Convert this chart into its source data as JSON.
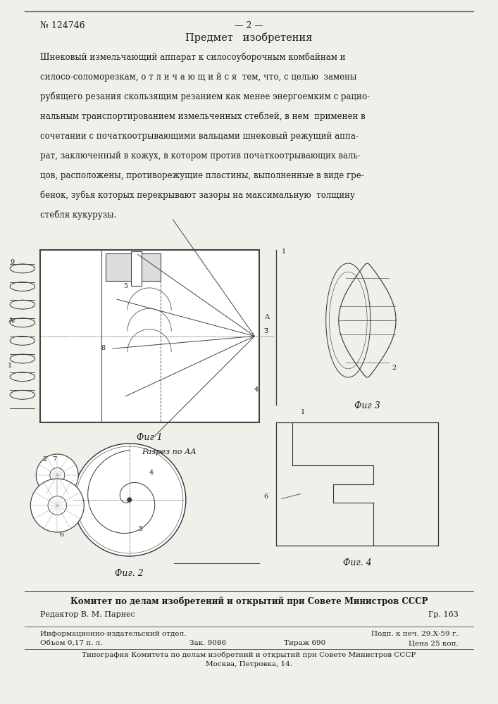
{
  "bg_color": "#f0f0eb",
  "patent_number": "№ 124746",
  "page_number": "— 2 —",
  "section_title": "Предмет   изобретения",
  "body_lines": [
    "Шнековый измельчающий аппарат к силосоуборочным комбайнам и",
    "силосо-соломорезкам, о т л и ч а ю щ и й с я  тем, что, с целью  замены",
    "рубящего резания скользящим резанием как менее энергоемким с рацио-",
    "нальным транспортированием измельченных стеблей, в нем  применен в",
    "сочетании с початкоотрывающими вальцами шнековый режущий аппа-",
    "рат, заключенный в кожух, в котором против початкоотрывающих валь-",
    "цов, расположены, противорежущие пластины, выполненные в виде гре-",
    "бенок, зубья которых перекрывают зазоры на максимальную  толщину",
    "стебля кукурузы."
  ],
  "fig1_caption": "Фиг 1",
  "fig2_caption": "Фиг. 2",
  "fig3_caption": "Фиг 3",
  "fig4_caption": "Фиг. 4",
  "section_aa": "Разрез по АА",
  "footer_line1": "Комитет по делам изобретений и открытий при Совете Министров СССР",
  "footer_editor": "Редактор В. М. Парнес",
  "footer_gr": "Гр. 163",
  "footer_info_left": "Информационно-издательский отдел.",
  "footer_info_right": "Подп. к печ. 29.Х-59 г.",
  "footer_vol": "Объем 0,17 п. л.",
  "footer_zak": "Зак. 9086",
  "footer_tirazh": "Тираж 690",
  "footer_price": "Цена 25 коп.",
  "footer_tip1": "Типография Комитета по делам изобретний и открытий при Совете Министров СССР",
  "footer_tip2": "Москва, Петровка, 14.",
  "text_color": "#1a1a1a"
}
